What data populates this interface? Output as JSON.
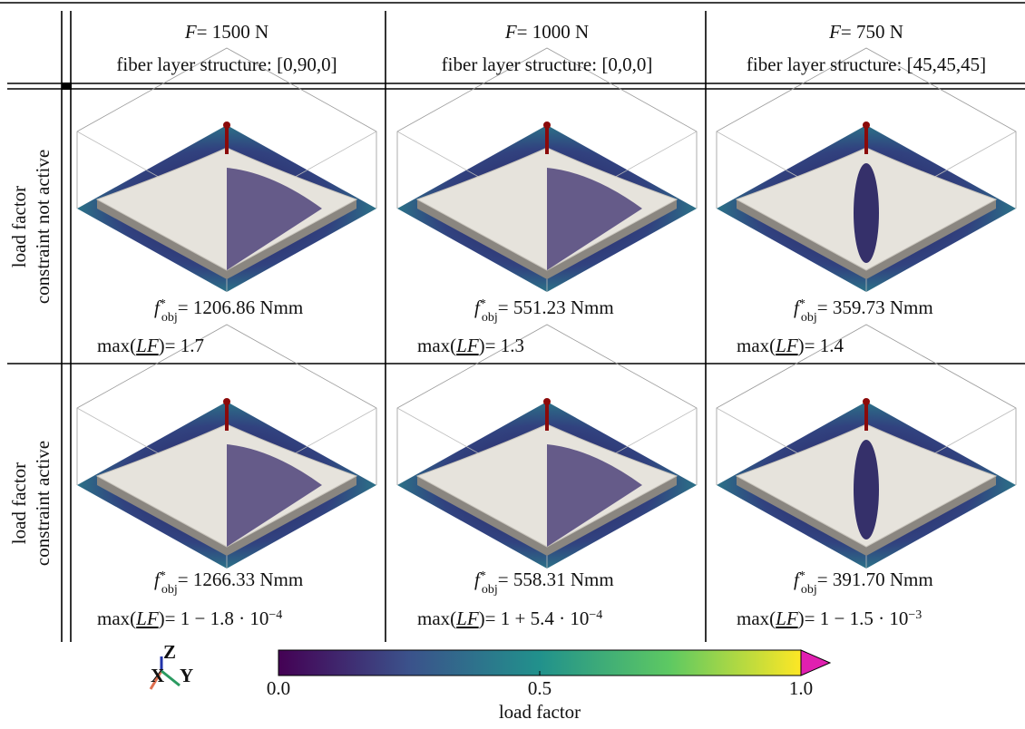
{
  "header": {
    "columns": [
      {
        "force_symbol": "F",
        "force": "= 1500 N",
        "layers": "fiber layer structure: [0,90,0]"
      },
      {
        "force_symbol": "F",
        "force": "= 1000 N",
        "layers": "fiber layer structure: [0,0,0]"
      },
      {
        "force_symbol": "F",
        "force": "= 750 N",
        "layers": "fiber layer structure: [45,45,45]"
      }
    ]
  },
  "notation": {
    "f": "f",
    "f_sup": "*",
    "f_sub": "obj",
    "max_open": "max(",
    "lf": "LF",
    "max_close": ")"
  },
  "rows": [
    {
      "label": [
        "load factor",
        "constraint not active"
      ],
      "cells": [
        {
          "objective": "= 1206.86 Nmm",
          "max_lf": {
            "text": "= 1.7"
          }
        },
        {
          "objective": "= 551.23 Nmm",
          "max_lf": {
            "text": "= 1.3"
          }
        },
        {
          "objective": "= 359.73 Nmm",
          "max_lf": {
            "text": "= 1.4"
          }
        }
      ]
    },
    {
      "label": [
        "load factor",
        "constraint active"
      ],
      "cells": [
        {
          "objective": "= 1266.33 Nmm",
          "max_lf": {
            "text": "= 1 − 1.8 · 10",
            "exp": "−4"
          }
        },
        {
          "objective": "= 558.31 Nmm",
          "max_lf": {
            "text": "= 1 + 5.4 · 10",
            "exp": "−4"
          }
        },
        {
          "objective": "= 391.70 Nmm",
          "max_lf": {
            "text": "= 1 − 1.5 · 10",
            "exp": "−3"
          }
        }
      ]
    }
  ],
  "axes_icon": {
    "z": "Z",
    "x": "X",
    "y": "Y"
  },
  "colorbar": {
    "label": "load factor",
    "lim": [
      0,
      1
    ],
    "ticks": [
      {
        "value": 0,
        "label": "0.0"
      },
      0.5,
      {
        "value": 1,
        "label": "1.0"
      }
    ]
  }
}
